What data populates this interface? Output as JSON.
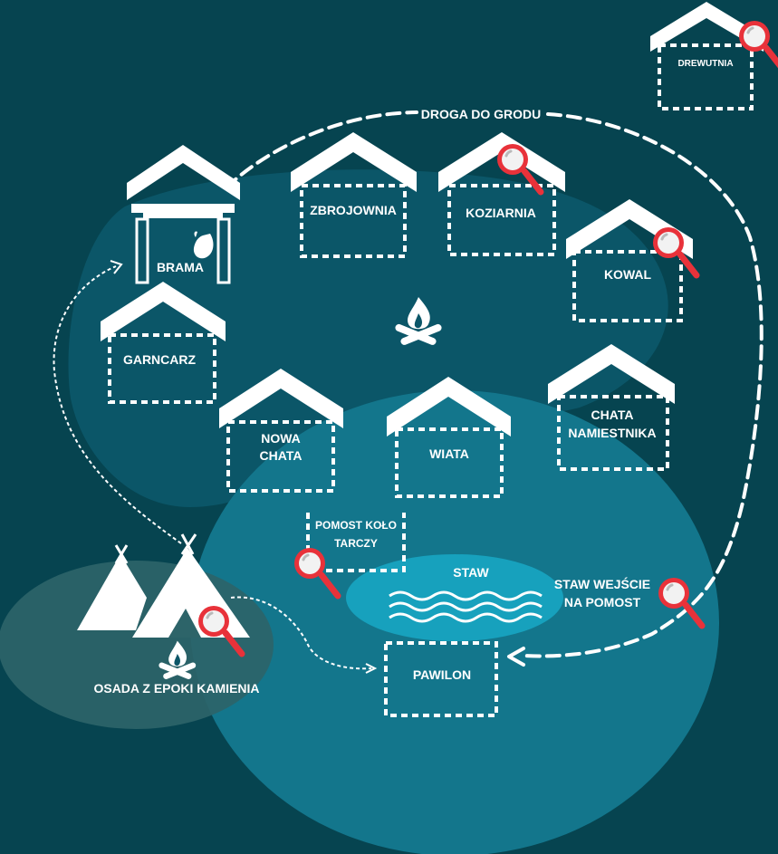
{
  "map": {
    "road_label": "DROGA DO GRODU",
    "buildings": {
      "drewutnia": "DREWUTNIA",
      "brama": "BRAMA",
      "zbrojownia": "ZBROJOWNIA",
      "koziarnia": "KOZIARNIA",
      "kowal": "KOWAL",
      "garncarz": "GARNCARZ",
      "nowa_chata_1": "NOWA",
      "nowa_chata_2": "CHATA",
      "wiata": "WIATA",
      "chata_namiestnika_1": "CHATA",
      "chata_namiestnika_2": "NAMIESTNIKA",
      "pomost_1": "POMOST KOŁO",
      "pomost_2": "TARCZY",
      "pawilon": "PAWILON"
    },
    "pond_label": "STAW",
    "pond_entry_1": "STAW WEJŚCIE",
    "pond_entry_2": "NA POMOST",
    "stone_age": "OSADA Z EPOKI  KAMIENIA",
    "icons": [
      "magnifier-icon",
      "campfire-icon",
      "teepee-icon",
      "gate-icon",
      "footprint-icon",
      "waves-icon"
    ],
    "colors": {
      "background": "#064450",
      "zone_dark": "#0b5668",
      "zone_light": "#13768c",
      "pond": "#17a1bd",
      "stone_age_zone": "#2d6469",
      "marker_red": "#e8323a",
      "marker_lens": "#f0f0f0"
    }
  }
}
